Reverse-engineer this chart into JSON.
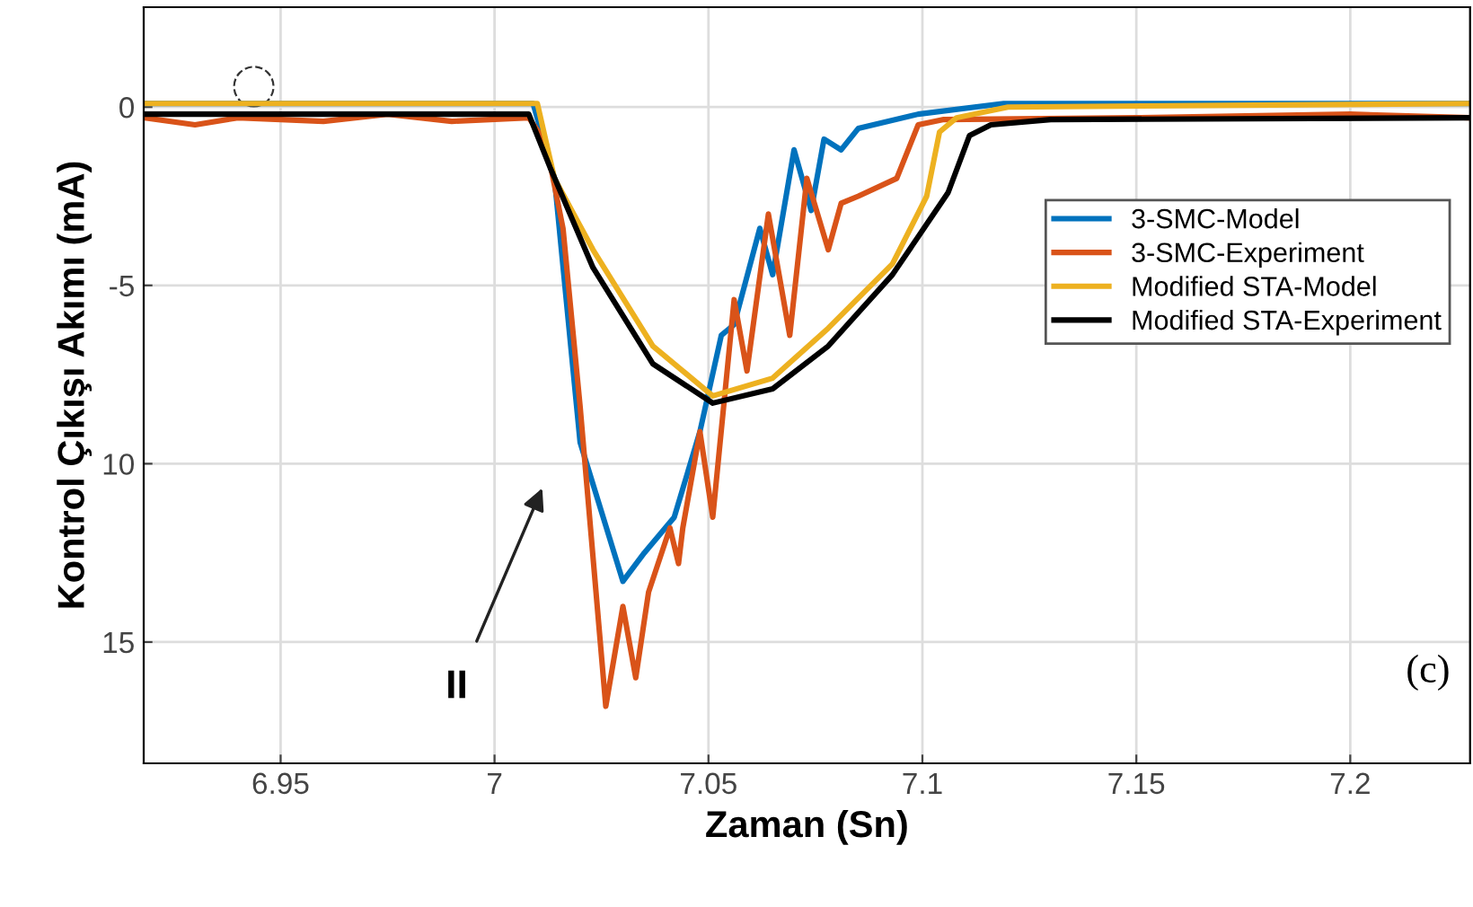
{
  "chart_data": {
    "type": "line",
    "xlabel": "Zaman (Sn)",
    "ylabel": "Kontrol Çıkışı Akımı (mA)",
    "xlim": [
      6.918,
      7.228
    ],
    "ylim": [
      -18.4,
      2.8
    ],
    "xticks": [
      6.95,
      7,
      7.05,
      7.1,
      7.15,
      7.2
    ],
    "yticks": [
      {
        "value": 0,
        "label": "0"
      },
      {
        "value": -5,
        "label": "-5"
      },
      {
        "value": -10,
        "label": "10"
      },
      {
        "value": -15,
        "label": "15"
      }
    ],
    "grid": true,
    "legend": "right",
    "line_style": "solid",
    "marker": "none",
    "annotations": [
      "II",
      "(c)"
    ],
    "series": [
      {
        "name": "3-SMC-Model",
        "color": "#0072bd",
        "x": [
          6.918,
          7.009,
          7.014,
          7.02,
          7.03,
          7.035,
          7.042,
          7.048,
          7.053,
          7.056,
          7.062,
          7.065,
          7.07,
          7.074,
          7.077,
          7.081,
          7.085,
          7.099,
          7.119,
          7.228
        ],
        "values": [
          0.1,
          0.1,
          -2.0,
          -9.4,
          -13.3,
          -12.5,
          -11.5,
          -9.1,
          -6.4,
          -6.1,
          -3.4,
          -4.7,
          -1.2,
          -2.9,
          -0.9,
          -1.2,
          -0.6,
          -0.2,
          0.1,
          0.1
        ]
      },
      {
        "name": "3-SMC-Experiment",
        "color": "#d95319",
        "x": [
          6.918,
          6.93,
          6.94,
          6.96,
          6.975,
          6.99,
          7.008,
          7.012,
          7.016,
          7.02,
          7.026,
          7.03,
          7.033,
          7.036,
          7.041,
          7.043,
          7.044,
          7.048,
          7.051,
          7.056,
          7.059,
          7.064,
          7.069,
          7.073,
          7.078,
          7.081,
          7.085,
          7.094,
          7.099,
          7.105,
          7.15,
          7.2,
          7.228
        ],
        "values": [
          -0.3,
          -0.5,
          -0.3,
          -0.4,
          -0.2,
          -0.4,
          -0.3,
          -1.0,
          -3.4,
          -8.4,
          -16.8,
          -14.0,
          -16.0,
          -13.6,
          -11.8,
          -12.8,
          -11.8,
          -9.1,
          -11.5,
          -5.4,
          -7.4,
          -3.0,
          -6.4,
          -2.0,
          -4.0,
          -2.7,
          -2.5,
          -2.0,
          -0.5,
          -0.35,
          -0.3,
          -0.2,
          -0.3
        ]
      },
      {
        "name": "Modified STA-Model",
        "color": "#edb120",
        "x": [
          6.918,
          7.01,
          7.014,
          7.023,
          7.037,
          7.051,
          7.065,
          7.078,
          7.093,
          7.101,
          7.104,
          7.108,
          7.12,
          7.228
        ],
        "values": [
          0.1,
          0.1,
          -2.0,
          -4.0,
          -6.7,
          -8.1,
          -7.6,
          -6.2,
          -4.4,
          -2.5,
          -0.7,
          -0.3,
          0.0,
          0.1
        ]
      },
      {
        "name": "Modified STA-Experiment",
        "color": "#000000",
        "x": [
          6.918,
          7.008,
          7.013,
          7.023,
          7.037,
          7.051,
          7.065,
          7.078,
          7.093,
          7.106,
          7.111,
          7.116,
          7.13,
          7.228
        ],
        "values": [
          -0.2,
          -0.2,
          -1.7,
          -4.5,
          -7.2,
          -8.3,
          -7.9,
          -6.7,
          -4.7,
          -2.4,
          -0.8,
          -0.5,
          -0.35,
          -0.3
        ]
      }
    ]
  }
}
